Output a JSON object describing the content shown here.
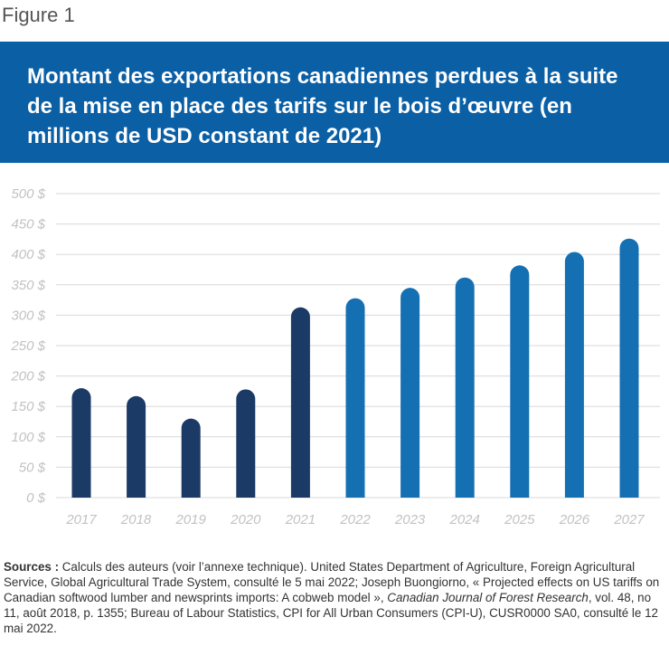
{
  "figure_label": "Figure 1",
  "title": "Montant des exportations canadiennes perdues à la suite de la mise en place des tarifs sur le bois d’œuvre (en millions de USD constant de 2021)",
  "colors": {
    "title_bg": "#0a5fa5",
    "bar_historical": "#1b3a66",
    "bar_projected": "#1470b3",
    "gridline": "#d9d9d9",
    "axis_label": "#c2c2c2"
  },
  "chart_data": {
    "type": "bar",
    "categories": [
      "2017",
      "2018",
      "2019",
      "2020",
      "2021",
      "2022",
      "2023",
      "2024",
      "2025",
      "2026",
      "2027"
    ],
    "values": [
      180,
      167,
      130,
      178,
      313,
      328,
      345,
      362,
      382,
      404,
      426
    ],
    "bar_color_group": [
      "historical",
      "historical",
      "historical",
      "historical",
      "historical",
      "projected",
      "projected",
      "projected",
      "projected",
      "projected",
      "projected"
    ],
    "y_ticks": [
      "0 $",
      "50 $",
      "100 $",
      "150 $",
      "200 $",
      "250 $",
      "300 $",
      "350 $",
      "400 $",
      "450 $",
      "500 $"
    ],
    "ylim": [
      0,
      500
    ],
    "grid": true,
    "xlabel": "",
    "ylabel": ""
  },
  "sources": {
    "label": "Sources :",
    "text1": " Calculs des auteurs (voir l’annexe technique). United States Department of Agriculture, Foreign Agricultural Service, Global Agricultural Trade System, consulté le 5 mai 2022; Joseph Buongiorno, « Projected effects on US tariffs on Canadian softwood lumber and newsprints imports: A cobweb model », ",
    "journal": "Canadian Journal of Forest Research",
    "text2": ", vol. 48, no 11, août 2018, p. 1355;  Bureau of Labour Statistics, CPI for All Urban Consumers (CPI-U), CUSR0000 SA0, consulté le 12 mai 2022."
  }
}
